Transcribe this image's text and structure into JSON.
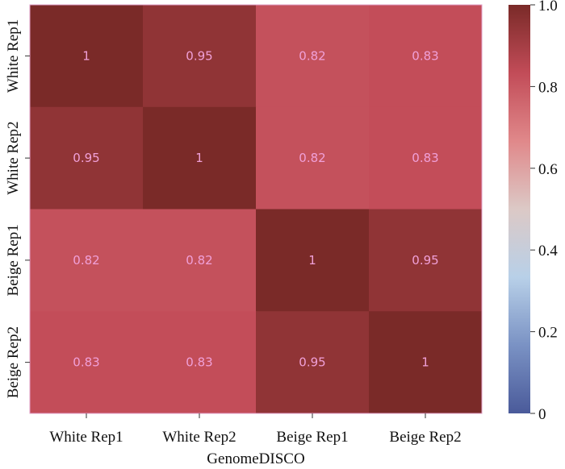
{
  "chart_data": {
    "type": "heatmap",
    "title": "",
    "xlabel": "GenomeDISCO",
    "ylabel": "",
    "x_categories": [
      "White Rep1",
      "White Rep2",
      "Beige Rep1",
      "Beige Rep2"
    ],
    "y_categories": [
      "White Rep1",
      "White Rep2",
      "Beige Rep1",
      "Beige Rep2"
    ],
    "values": [
      [
        1,
        0.95,
        0.82,
        0.83
      ],
      [
        0.95,
        1,
        0.82,
        0.83
      ],
      [
        0.82,
        0.82,
        1,
        0.95
      ],
      [
        0.83,
        0.83,
        0.95,
        1
      ]
    ],
    "value_labels": [
      [
        "1",
        "0.95",
        "0.82",
        "0.83"
      ],
      [
        "0.95",
        "1",
        "0.82",
        "0.83"
      ],
      [
        "0.82",
        "0.82",
        "1",
        "0.95"
      ],
      [
        "0.83",
        "0.83",
        "0.95",
        "1"
      ]
    ],
    "colorbar": {
      "range": [
        0,
        1
      ],
      "ticks": [
        0,
        0.2,
        0.4,
        0.6,
        0.8,
        1.0
      ],
      "tick_labels": [
        "0",
        "0.2",
        "0.4",
        "0.6",
        "0.8",
        "1.0"
      ],
      "colors": [
        "#4a5a9a",
        "#7a92c4",
        "#b8d0e8",
        "#dcc9c6",
        "#e0888a",
        "#c24c58",
        "#7a2a28"
      ]
    },
    "annotation_color": "#f0a0d8"
  }
}
